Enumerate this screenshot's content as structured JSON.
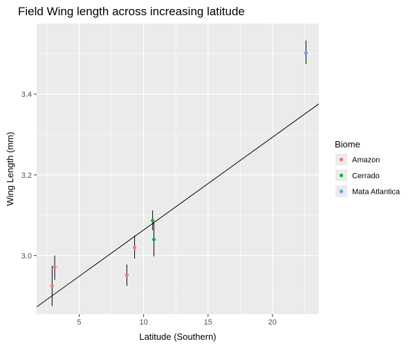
{
  "chart_data": {
    "type": "scatter",
    "title": "Field Wing length across increasing latitude",
    "xlabel": "Latitude (Southern)",
    "ylabel": "Wing Length (mm)",
    "xlim": [
      1.7,
      23.6
    ],
    "ylim": [
      2.855,
      3.575
    ],
    "x_ticks": [
      5,
      10,
      15,
      20
    ],
    "y_ticks": [
      3.0,
      3.2,
      3.4
    ],
    "y_tick_labels": [
      "3.0",
      "3.2",
      "3.4"
    ],
    "grid": true,
    "legend": {
      "title": "Biome",
      "placement": "right",
      "entries": [
        {
          "name": "Amazon",
          "color": "#F8766D"
        },
        {
          "name": "Cerrado",
          "color": "#00BA38"
        },
        {
          "name": "Mata Atlantica",
          "color": "#619CFF"
        }
      ]
    },
    "series": [
      {
        "name": "Amazon",
        "color": "#F8766D",
        "points": [
          {
            "x": 2.9,
            "y": 2.925,
            "ymin": 2.875,
            "ymax": 2.975
          },
          {
            "x": 3.1,
            "y": 2.972,
            "ymin": 2.94,
            "ymax": 3.0
          },
          {
            "x": 8.7,
            "y": 2.952,
            "ymin": 2.925,
            "ymax": 2.978
          },
          {
            "x": 9.3,
            "y": 3.02,
            "ymin": 2.993,
            "ymax": 3.05
          }
        ]
      },
      {
        "name": "Cerrado",
        "color": "#00BA38",
        "points": [
          {
            "x": 10.7,
            "y": 3.087,
            "ymin": 3.063,
            "ymax": 3.112
          },
          {
            "x": 10.8,
            "y": 3.04,
            "ymin": 2.998,
            "ymax": 3.082
          }
        ]
      },
      {
        "name": "Mata Atlantica",
        "color": "#619CFF",
        "points": [
          {
            "x": 22.6,
            "y": 3.502,
            "ymin": 3.475,
            "ymax": 3.533
          }
        ]
      }
    ],
    "trendline": {
      "x": [
        1.7,
        23.6
      ],
      "y": [
        2.873,
        3.376
      ],
      "color": "#000000"
    },
    "colors": {
      "panel": "#EBEBEB",
      "grid": "#FFFFFF",
      "tick": "#333333"
    }
  }
}
